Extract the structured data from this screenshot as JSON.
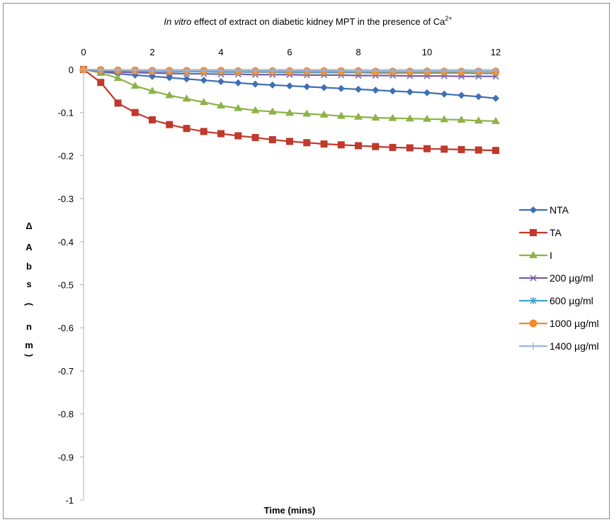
{
  "chart_data": {
    "type": "line",
    "title": {
      "italic": "In vitro",
      "rest": " effect of extract on diabetic kidney MPT in the presence of Ca",
      "sup": "2+"
    },
    "xlabel": "Time (mins)",
    "ylabel_chars": [
      "Δ",
      "A",
      "b",
      "s",
      "(",
      "n",
      "m",
      ")"
    ],
    "xlim": [
      0,
      12
    ],
    "ylim": [
      -1,
      0
    ],
    "x_ticks": [
      "0",
      "2",
      "4",
      "6",
      "8",
      "10",
      "12"
    ],
    "y_ticks": [
      "0",
      "-0.1",
      "-0.2",
      "-0.3",
      "-0.4",
      "-0.5",
      "-0.6",
      "-0.7",
      "-0.8",
      "-0.9",
      "-1"
    ],
    "x_axis_position": "top",
    "grid": false,
    "legend_position": "right",
    "x": [
      0,
      0.5,
      1,
      1.5,
      2,
      2.5,
      3,
      3.5,
      4,
      4.5,
      5,
      5.5,
      6,
      6.5,
      7,
      7.5,
      8,
      8.5,
      9,
      9.5,
      10,
      10.5,
      11,
      11.5,
      12
    ],
    "series": [
      {
        "name": "NTA",
        "color": "#3f6fb5",
        "marker": "diamond",
        "values": [
          0,
          -0.005,
          -0.01,
          -0.013,
          -0.016,
          -0.019,
          -0.022,
          -0.025,
          -0.028,
          -0.031,
          -0.034,
          -0.036,
          -0.038,
          -0.04,
          -0.042,
          -0.044,
          -0.046,
          -0.048,
          -0.05,
          -0.052,
          -0.054,
          -0.057,
          -0.06,
          -0.063,
          -0.067
        ]
      },
      {
        "name": "TA",
        "color": "#c0392b",
        "marker": "square",
        "values": [
          0,
          -0.03,
          -0.078,
          -0.1,
          -0.117,
          -0.128,
          -0.137,
          -0.144,
          -0.149,
          -0.154,
          -0.158,
          -0.163,
          -0.167,
          -0.17,
          -0.173,
          -0.175,
          -0.177,
          -0.179,
          -0.181,
          -0.182,
          -0.184,
          -0.185,
          -0.186,
          -0.187,
          -0.188
        ]
      },
      {
        "name": "I",
        "color": "#8db347",
        "marker": "triangle",
        "values": [
          0,
          -0.008,
          -0.02,
          -0.038,
          -0.05,
          -0.06,
          -0.068,
          -0.076,
          -0.084,
          -0.09,
          -0.095,
          -0.098,
          -0.101,
          -0.103,
          -0.105,
          -0.108,
          -0.11,
          -0.112,
          -0.113,
          -0.114,
          -0.115,
          -0.116,
          -0.117,
          -0.119,
          -0.12
        ]
      },
      {
        "name": "200 µg/ml",
        "color": "#7b5aa6",
        "marker": "x",
        "values": [
          0,
          -0.004,
          -0.006,
          -0.007,
          -0.008,
          -0.009,
          -0.01,
          -0.01,
          -0.011,
          -0.011,
          -0.012,
          -0.012,
          -0.012,
          -0.013,
          -0.013,
          -0.013,
          -0.014,
          -0.014,
          -0.014,
          -0.015,
          -0.015,
          -0.015,
          -0.016,
          -0.016,
          -0.016
        ]
      },
      {
        "name": "600 µg/ml",
        "color": "#3fa3c9",
        "marker": "star",
        "values": [
          0,
          -0.002,
          -0.003,
          -0.004,
          -0.004,
          -0.005,
          -0.005,
          -0.005,
          -0.006,
          -0.006,
          -0.006,
          -0.006,
          -0.007,
          -0.007,
          -0.007,
          -0.007,
          -0.007,
          -0.008,
          -0.008,
          -0.008,
          -0.008,
          -0.008,
          -0.008,
          -0.009,
          -0.009
        ]
      },
      {
        "name": "1000 µg/ml",
        "color": "#f08c2e",
        "marker": "circle",
        "values": [
          0,
          -0.001,
          -0.002,
          -0.002,
          -0.003,
          -0.003,
          -0.003,
          -0.003,
          -0.003,
          -0.004,
          -0.004,
          -0.004,
          -0.004,
          -0.004,
          -0.004,
          -0.004,
          -0.004,
          -0.005,
          -0.005,
          -0.005,
          -0.005,
          -0.005,
          -0.005,
          -0.005,
          -0.005
        ]
      },
      {
        "name": "1400 µg/ml",
        "color": "#9bb5db",
        "marker": "plus",
        "values": [
          0,
          -0.001,
          -0.001,
          -0.001,
          -0.002,
          -0.002,
          -0.002,
          -0.002,
          -0.002,
          -0.002,
          -0.002,
          -0.002,
          -0.002,
          -0.002,
          -0.002,
          -0.003,
          -0.003,
          -0.003,
          -0.003,
          -0.003,
          -0.003,
          -0.003,
          -0.003,
          -0.003,
          -0.003
        ]
      }
    ]
  }
}
